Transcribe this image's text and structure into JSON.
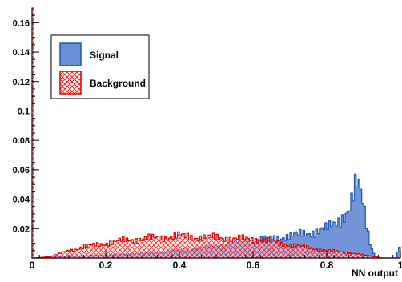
{
  "chart_data": {
    "type": "histogram",
    "xlabel": "NN output",
    "ylabel": "",
    "title": "",
    "xlim": [
      0,
      1
    ],
    "ylim": [
      0,
      0.17
    ],
    "bin_width": 0.005,
    "x_ticks": [
      {
        "value": 0,
        "label": "0"
      },
      {
        "value": 0.2,
        "label": "0.2"
      },
      {
        "value": 0.4,
        "label": "0.4"
      },
      {
        "value": 0.6,
        "label": "0.6"
      },
      {
        "value": 0.8,
        "label": "0.8"
      },
      {
        "value": 1,
        "label": "1"
      }
    ],
    "y_ticks": [
      {
        "value": 0.02,
        "label": "0.02"
      },
      {
        "value": 0.04,
        "label": "0.04"
      },
      {
        "value": 0.06,
        "label": "0.06"
      },
      {
        "value": 0.08,
        "label": "0.08"
      },
      {
        "value": 0.1,
        "label": "0.1"
      },
      {
        "value": 0.12,
        "label": "0.12"
      },
      {
        "value": 0.14,
        "label": "0.14"
      },
      {
        "value": 0.16,
        "label": "0.16"
      }
    ],
    "legend_position": "top-left",
    "series": [
      {
        "name": "Signal",
        "fill": "#6b8fd6",
        "stroke": "#1f56b8",
        "pattern": "solid",
        "curve": [
          [
            0,
            0.0
          ],
          [
            0.05,
            0.0005
          ],
          [
            0.1,
            0.001
          ],
          [
            0.2,
            0.002
          ],
          [
            0.3,
            0.003
          ],
          [
            0.4,
            0.005
          ],
          [
            0.5,
            0.008
          ],
          [
            0.55,
            0.01
          ],
          [
            0.6,
            0.012
          ],
          [
            0.65,
            0.013
          ],
          [
            0.7,
            0.015
          ],
          [
            0.75,
            0.017
          ],
          [
            0.8,
            0.02
          ],
          [
            0.83,
            0.025
          ],
          [
            0.86,
            0.033
          ],
          [
            0.875,
            0.044
          ],
          [
            0.88,
            0.05
          ],
          [
            0.89,
            0.046
          ],
          [
            0.9,
            0.035
          ],
          [
            0.91,
            0.02
          ],
          [
            0.92,
            0.008
          ],
          [
            0.93,
            0.002
          ],
          [
            0.94,
            0.0
          ],
          [
            0.99,
            0.0
          ],
          [
            0.995,
            0.008
          ],
          [
            1.0,
            0.008
          ]
        ]
      },
      {
        "name": "Background",
        "fill": "#ff2020",
        "stroke": "#e60000",
        "pattern": "crosshatch",
        "spike": {
          "x": 0.0,
          "value": 0.17
        },
        "curve": [
          [
            0.005,
            0.0
          ],
          [
            0.05,
            0.001
          ],
          [
            0.1,
            0.005
          ],
          [
            0.15,
            0.008
          ],
          [
            0.2,
            0.01
          ],
          [
            0.25,
            0.012
          ],
          [
            0.3,
            0.013
          ],
          [
            0.35,
            0.014
          ],
          [
            0.4,
            0.015
          ],
          [
            0.45,
            0.014
          ],
          [
            0.5,
            0.014
          ],
          [
            0.55,
            0.013
          ],
          [
            0.6,
            0.013
          ],
          [
            0.65,
            0.011
          ],
          [
            0.7,
            0.009
          ],
          [
            0.75,
            0.007
          ],
          [
            0.8,
            0.005
          ],
          [
            0.85,
            0.004
          ],
          [
            0.9,
            0.002
          ],
          [
            0.93,
            0.001
          ],
          [
            0.95,
            0.0
          ],
          [
            1.0,
            0.0
          ]
        ]
      }
    ]
  }
}
